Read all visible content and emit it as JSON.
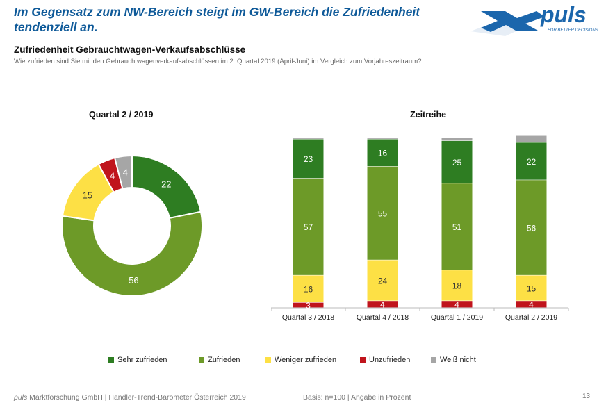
{
  "headline": "Im Gegensatz zum NW-Bereich steigt im GW-Bereich die Zufriedenheit tendenziell an.",
  "logo": {
    "text": "puls",
    "tagline": "FOR BETTER DECISIONS"
  },
  "section": {
    "title": "Zufriedenheit Gebrauchtwagen-Verkaufsabschlüsse",
    "subtitle": "Wie zufrieden sind Sie mit den Gebrauchtwagenverkaufsabschlüssen im 2. Quartal 2019 (April-Juni) im Vergleich zum Vorjahreszeitraum?"
  },
  "chart_data": [
    {
      "type": "pie",
      "title": "Quartal 2 / 2019",
      "donut": true,
      "labels": [
        "Sehr zufrieden",
        "Zufrieden",
        "Weniger zufrieden",
        "Unzufrieden",
        "Weiß nicht"
      ],
      "values": [
        22,
        56,
        15,
        4,
        4
      ],
      "colors": [
        "#2e7d22",
        "#6d9a28",
        "#fde045",
        "#c0141c",
        "#a6a6a6"
      ]
    },
    {
      "type": "bar",
      "stacked": true,
      "title": "Zeitreihe",
      "categories": [
        "Quartal 3 / 2018",
        "Quartal 4 / 2018",
        "Quartal 1 / 2019",
        "Quartal 2 / 2019"
      ],
      "series": [
        {
          "name": "Unzufrieden",
          "values": [
            3,
            4,
            4,
            4
          ],
          "color": "#c0141c"
        },
        {
          "name": "Weniger zufrieden",
          "values": [
            16,
            24,
            18,
            15
          ],
          "color": "#fde045"
        },
        {
          "name": "Zufrieden",
          "values": [
            57,
            55,
            51,
            56
          ],
          "color": "#6d9a28"
        },
        {
          "name": "Sehr zufrieden",
          "values": [
            23,
            16,
            25,
            22
          ],
          "color": "#2e7d22"
        },
        {
          "name": "Weiß nicht",
          "values": [
            1,
            1,
            2,
            4
          ],
          "color": "#a6a6a6"
        }
      ],
      "hidden_labels": [
        "Weiß nicht"
      ],
      "ylim": [
        0,
        100
      ]
    }
  ],
  "legend": [
    {
      "label": "Sehr zufrieden",
      "color": "#2e7d22"
    },
    {
      "label": "Zufrieden",
      "color": "#6d9a28"
    },
    {
      "label": "Weniger zufrieden",
      "color": "#fde045"
    },
    {
      "label": "Unzufrieden",
      "color": "#c0141c"
    },
    {
      "label": "Weiß nicht",
      "color": "#a6a6a6"
    }
  ],
  "footer": {
    "brand": "puls",
    "source": " Marktforschung GmbH | Händler-Trend-Barometer Österreich 2019",
    "basis": "Basis: n=100 | Angabe in Prozent",
    "page": "13"
  }
}
